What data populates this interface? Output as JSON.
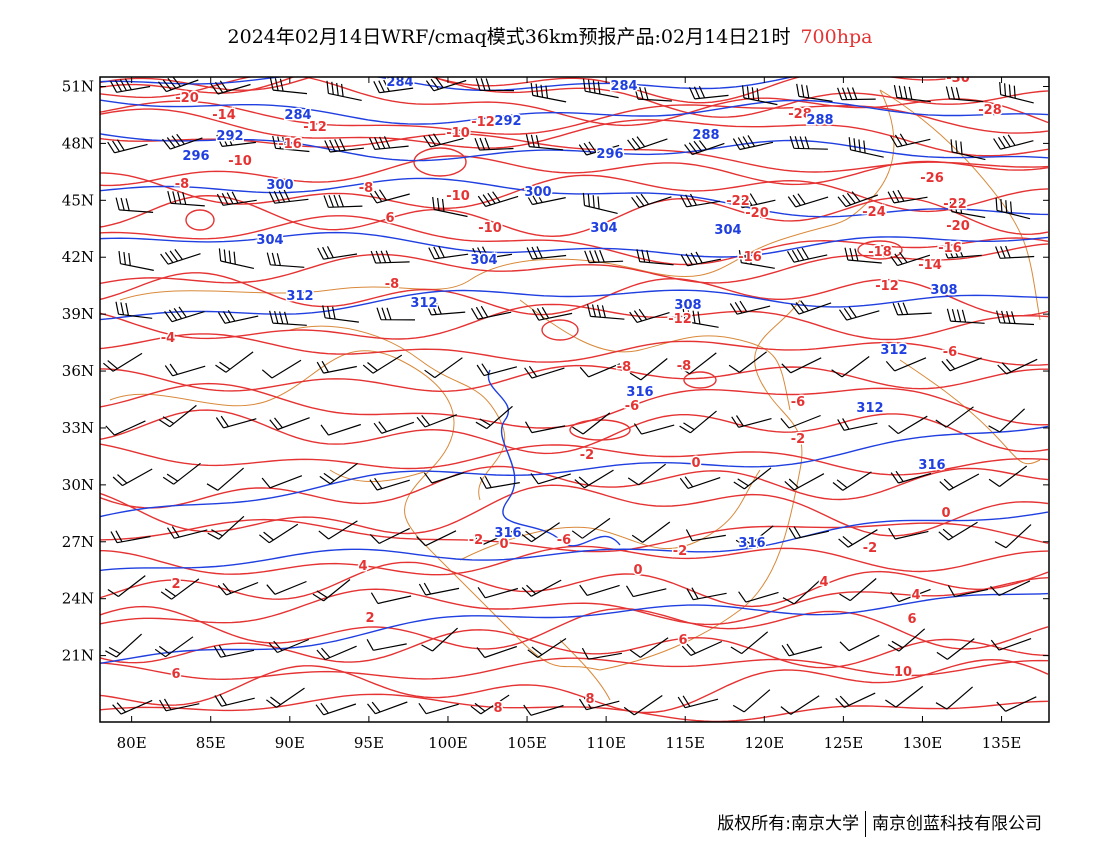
{
  "title": {
    "text": "2024年02月14日WRF/cmaq模式36km预报产品:02月14日21时",
    "level": "700hpa"
  },
  "map": {
    "lon_range": [
      78,
      138
    ],
    "lat_range": [
      17.5,
      51.5
    ],
    "lon_ticks": [
      "80E",
      "85E",
      "90E",
      "95E",
      "100E",
      "105E",
      "110E",
      "115E",
      "120E",
      "125E",
      "130E",
      "135E"
    ],
    "lat_ticks": [
      "51N",
      "48N",
      "45N",
      "42N",
      "39N",
      "36N",
      "33N",
      "30N",
      "27N",
      "24N",
      "21N"
    ],
    "colors": {
      "temperature_contour": "#e53333",
      "height_contour": "#1f3fe0",
      "border": "#d9893a",
      "wind_barb": "#000000",
      "frame": "#000000"
    },
    "height_contour_labels": [
      "284",
      "284",
      "284",
      "288",
      "288",
      "292",
      "292",
      "296",
      "296",
      "300",
      "300",
      "304",
      "304",
      "304",
      "304",
      "308",
      "308",
      "312",
      "312",
      "312",
      "312",
      "316",
      "316",
      "316",
      "316"
    ],
    "temperature_contour_labels": [
      "-30",
      "-28",
      "-28",
      "-26",
      "-24",
      "-22",
      "-22",
      "-20",
      "-20",
      "-20",
      "-18",
      "-16",
      "-16",
      "-16",
      "-14",
      "-14",
      "-12",
      "-12",
      "-12",
      "-12",
      "-10",
      "-10",
      "-10",
      "-10",
      "-8",
      "-8",
      "-8",
      "-8",
      "-8",
      "-6",
      "-6",
      "-6",
      "-6",
      "-4",
      "-2",
      "-2",
      "-2",
      "-2",
      "-2",
      "0",
      "0",
      "0",
      "0",
      "2",
      "2",
      "4",
      "4",
      "4",
      "6",
      "6",
      "6",
      "6",
      "8",
      "8",
      "10"
    ]
  },
  "footer": {
    "copyright": "版权所有:南京大学",
    "company": "南京创蓝科技有限公司"
  }
}
